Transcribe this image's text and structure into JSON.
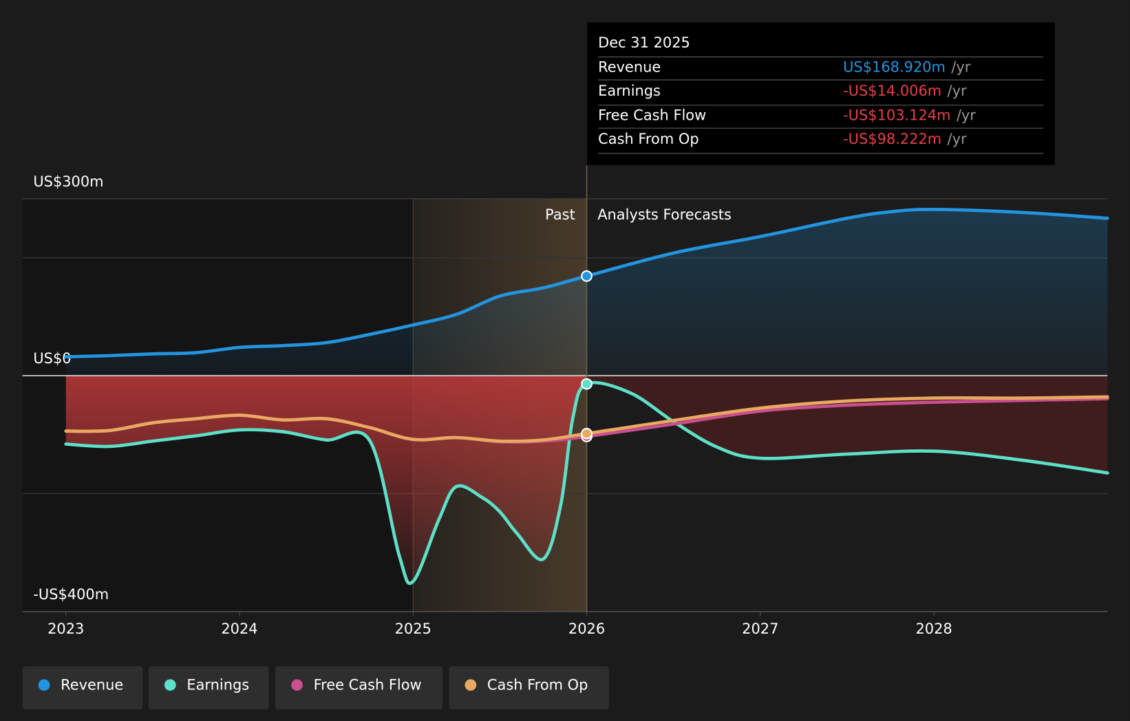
{
  "chart_data": {
    "type": "line",
    "xlim": [
      2022.75,
      2029
    ],
    "xticks": [
      2023,
      2024,
      2025,
      2026,
      2027,
      2028
    ],
    "ylim": [
      -400,
      300
    ],
    "yticks": [
      {
        "value": 300,
        "label": "US$300m"
      },
      {
        "value": 0,
        "label": "US$0"
      },
      {
        "value": -400,
        "label": "-US$400m"
      }
    ],
    "gridlines": [
      200,
      -200
    ],
    "grid": true,
    "shade_from": 2025,
    "divider_x": 2026,
    "past_label": "Past",
    "forecast_label": "Analysts Forecasts",
    "series": [
      {
        "name": "Revenue",
        "color": "#2394df",
        "x": [
          2023,
          2023.25,
          2023.5,
          2023.75,
          2024,
          2024.25,
          2024.5,
          2024.75,
          2025,
          2025.25,
          2025.5,
          2025.75,
          2026,
          2026.5,
          2027,
          2027.5,
          2027.75,
          2028,
          2028.5,
          2029
        ],
        "values": [
          32,
          34,
          37,
          39,
          48,
          51,
          56,
          70,
          86,
          104,
          135,
          149,
          168.92,
          208,
          236,
          267,
          278,
          282,
          277,
          267
        ]
      },
      {
        "name": "Earnings",
        "color": "#5de0c8",
        "x": [
          2023,
          2023.25,
          2023.5,
          2023.75,
          2024,
          2024.25,
          2024.5,
          2024.75,
          2024.92,
          2025,
          2025.15,
          2025.25,
          2025.4,
          2025.5,
          2025.6,
          2025.75,
          2025.85,
          2025.92,
          2026,
          2026.25,
          2026.5,
          2026.75,
          2027,
          2027.5,
          2028,
          2028.5,
          2029
        ],
        "values": [
          -116,
          -120,
          -111,
          -102,
          -92,
          -95,
          -109,
          -110,
          -305,
          -349,
          -243,
          -188,
          -207,
          -231,
          -268,
          -311,
          -220,
          -72,
          -14.006,
          -29,
          -78,
          -121,
          -140,
          -133,
          -128,
          -143,
          -165
        ]
      },
      {
        "name": "Free Cash Flow",
        "color": "#c94f8e",
        "x": [
          2023,
          2023.25,
          2023.5,
          2023.75,
          2024,
          2024.25,
          2024.5,
          2024.75,
          2025,
          2025.25,
          2025.5,
          2025.75,
          2026,
          2026.5,
          2027,
          2027.5,
          2028,
          2028.5,
          2029
        ],
        "values": [
          -94,
          -93,
          -80,
          -73,
          -67,
          -75,
          -73,
          -88,
          -108,
          -105,
          -112,
          -111,
          -103.124,
          -82,
          -60,
          -50,
          -45,
          -42,
          -39
        ]
      },
      {
        "name": "Cash From Op",
        "color": "#e8a960",
        "x": [
          2023,
          2023.25,
          2023.5,
          2023.75,
          2024,
          2024.25,
          2024.5,
          2024.75,
          2025,
          2025.25,
          2025.5,
          2025.75,
          2026,
          2026.5,
          2027,
          2027.5,
          2028,
          2028.5,
          2029
        ],
        "values": [
          -94,
          -93,
          -80,
          -73,
          -67,
          -75,
          -73,
          -88,
          -108,
          -105,
          -111,
          -109,
          -98.222,
          -76,
          -55,
          -43,
          -38,
          -38,
          -36
        ]
      }
    ],
    "tooltip": {
      "title": "Dec 31 2025",
      "unit": "/yr",
      "rows": [
        {
          "label": "Revenue",
          "value": "US$168.920m",
          "color": "#2394df"
        },
        {
          "label": "Earnings",
          "value": "-US$14.006m",
          "color": "#e8414a"
        },
        {
          "label": "Free Cash Flow",
          "value": "-US$103.124m",
          "color": "#e8414a"
        },
        {
          "label": "Cash From Op",
          "value": "-US$98.222m",
          "color": "#e8414a"
        }
      ]
    }
  }
}
